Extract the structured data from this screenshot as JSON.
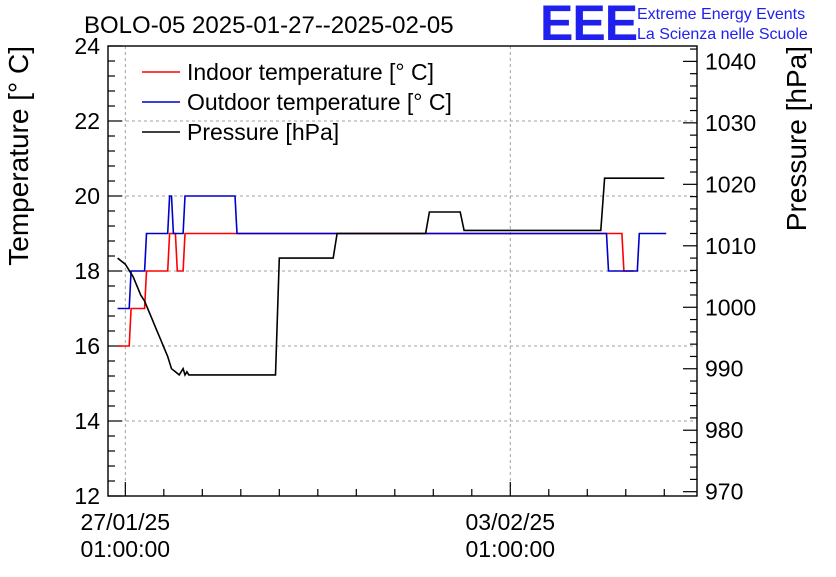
{
  "title": "BOLO-05 2025-01-27--2025-02-05",
  "logo": {
    "mark": "EEE",
    "line1": "Extreme Energy Events",
    "line2": "La Scienza nelle Scuole",
    "color": "#2020ee"
  },
  "chart_data": {
    "type": "line",
    "title": "BOLO-05 2025-01-27--2025-02-05",
    "ylabel": "Temperature [° C]",
    "y2label": "Pressure [hPa]",
    "xlabel": "",
    "x_units": "days since 2025-01-27 01:00:00",
    "xlim": [
      -0.45,
      14.85
    ],
    "ylim": [
      12,
      24
    ],
    "y2lim": [
      969.3,
      1042.5
    ],
    "grid": true,
    "legend_position": "top-left",
    "x_ticks": [
      {
        "x": 0,
        "label_date": "27/01/25",
        "label_time": "01:00:00"
      },
      {
        "x": 10,
        "label_date": "03/02/25",
        "label_time": "01:00:00"
      }
    ],
    "y_ticks": [
      12,
      14,
      16,
      18,
      20,
      22,
      24
    ],
    "y2_ticks": [
      970,
      980,
      990,
      1000,
      1010,
      1020,
      1030,
      1040
    ],
    "series": [
      {
        "name": "Indoor temperature [° C]",
        "axis": "left",
        "color": "#ff0000",
        "x": [
          -0.2,
          0.1,
          0.15,
          0.5,
          0.55,
          1.1,
          1.15,
          1.3,
          1.35,
          1.5,
          1.55,
          2.95,
          12.5,
          12.9,
          12.95,
          13.2
        ],
        "y": [
          16,
          16,
          17,
          17,
          18,
          18,
          19,
          19,
          18,
          18,
          19,
          19,
          19,
          19,
          18,
          18
        ]
      },
      {
        "name": "Outdoor temperature [° C]",
        "axis": "left",
        "color": "#0000cc",
        "x": [
          -0.2,
          0.1,
          0.15,
          0.5,
          0.55,
          1.1,
          1.15,
          1.2,
          1.25,
          1.5,
          1.55,
          2.85,
          2.9,
          12.5,
          12.55,
          13.3,
          13.35,
          14.05
        ],
        "y": [
          17,
          17,
          18,
          18,
          19,
          19,
          20,
          20,
          19,
          19,
          20,
          20,
          19,
          19,
          18,
          18,
          19,
          19
        ],
        "y_dupe_note_removed": true
      },
      {
        "name": "Pressure [hPa]",
        "axis": "right",
        "color": "#000000",
        "x": [
          -0.2,
          0.0,
          0.1,
          0.2,
          0.3,
          0.4,
          0.5,
          0.6,
          0.7,
          0.8,
          0.9,
          1.0,
          1.1,
          1.2,
          1.3,
          1.4,
          1.5,
          1.55,
          1.6,
          1.65,
          1.7,
          2.2,
          3.0,
          3.9,
          4.0,
          5.4,
          5.5,
          7.8,
          7.9,
          8.7,
          8.8,
          12.35,
          12.45,
          14.0
        ],
        "y": [
          1008,
          1007,
          1006,
          1005,
          1003.5,
          1002,
          1001,
          999.5,
          998,
          996.5,
          995,
          993.5,
          992,
          990,
          989.5,
          989,
          990,
          989,
          989.5,
          989,
          989,
          989,
          989,
          989,
          1008,
          1008,
          1012,
          1012,
          1015.5,
          1015.5,
          1012.5,
          1012.5,
          1021,
          1021
        ]
      }
    ]
  }
}
